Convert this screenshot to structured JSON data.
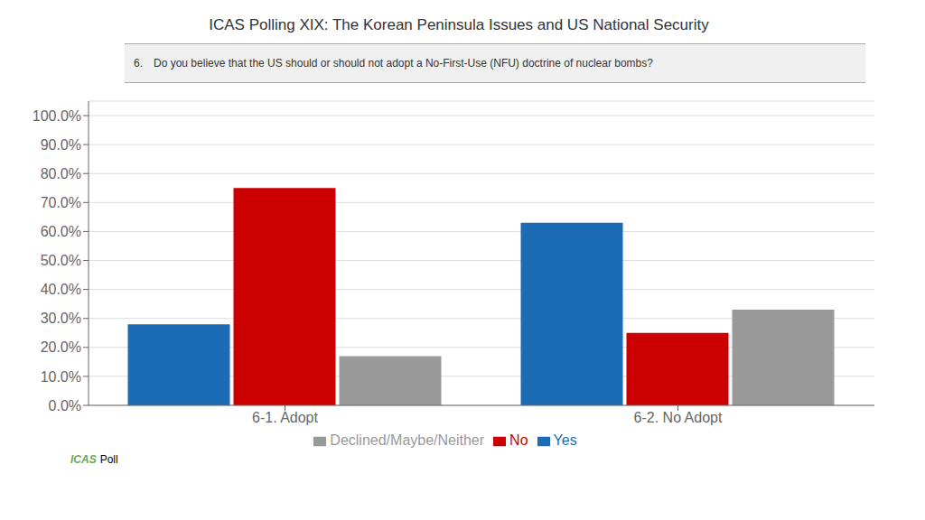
{
  "chart_data": {
    "type": "bar",
    "title": "ICAS Polling XIX: The Korean Peninsula Issues and US National Security",
    "annotations": [
      {
        "text": "6."
      },
      {
        "text": "Do you believe that the US should or should not adopt a No-First-Use (NFU) doctrine of nuclear bombs?"
      },
      {
        "text": "ICAS",
        "color": "#6AA84F"
      },
      {
        "text": "Poll",
        "color": "#000000"
      }
    ],
    "categories": [
      "6-1. Adopt",
      "6-2. No Adopt"
    ],
    "series": [
      {
        "name": "Yes",
        "color": "#1B6BB5",
        "values": [
          0.28,
          0.63
        ]
      },
      {
        "name": "No",
        "color": "#CC0000",
        "values": [
          0.75,
          0.25
        ]
      },
      {
        "name": "Declined/Maybe/Neither",
        "color": "#999999",
        "values": [
          0.17,
          0.33
        ]
      }
    ],
    "ylim": [
      0.0,
      1.05
    ],
    "yticks": [
      {
        "value": 0.0,
        "label": "0.0%"
      },
      {
        "value": 0.1,
        "label": "10.0%"
      },
      {
        "value": 0.2,
        "label": "20.0%"
      },
      {
        "value": 0.3,
        "label": "30.0%"
      },
      {
        "value": 0.4,
        "label": "40.0%"
      },
      {
        "value": 0.5,
        "label": "50.0%"
      },
      {
        "value": 0.6,
        "label": "60.0%"
      },
      {
        "value": 0.7,
        "label": "70.0%"
      },
      {
        "value": 0.8,
        "label": "80.0%"
      },
      {
        "value": 0.9,
        "label": "90.0%"
      },
      {
        "value": 1.0,
        "label": "100.0%"
      }
    ],
    "grid": true,
    "legend": "bottom"
  }
}
